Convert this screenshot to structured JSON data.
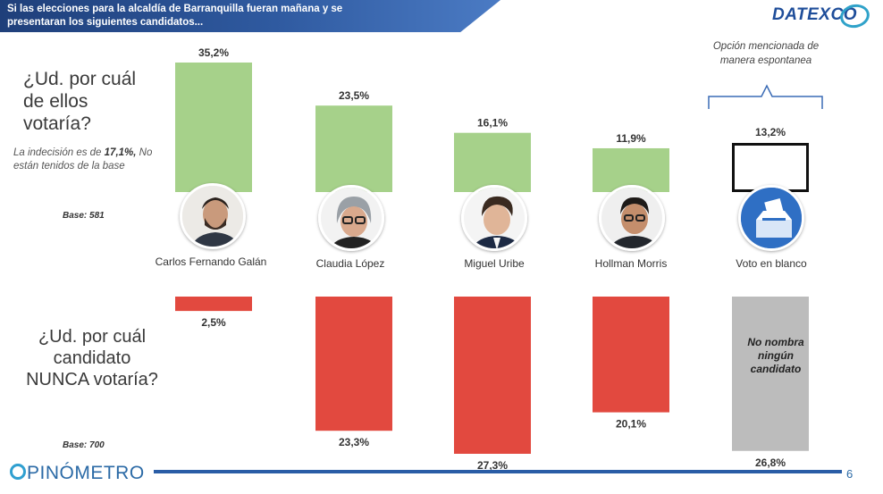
{
  "header": {
    "title": "Si las elecciones para la alcaldía de Barranquilla fueran mañana y se presentaran los siguientes candidatos...",
    "logo": "DATEXCO"
  },
  "question_vote": "¿Ud. por cuál de ellos votaría?",
  "indecision_note": {
    "prefix": "La indecisión es de ",
    "value": "17,1%,",
    "suffix": " No están tenidos de la base"
  },
  "base_vote": "Base: 581",
  "question_never": "¿Ud. por cuál candidato NUNCA votaría?",
  "base_never": "Base: 700",
  "spontaneous_label": "Opción mencionada de manera espontanea",
  "no_name_label": "No nombra ningún candidato",
  "footer": {
    "brand": "PINÓMETRO",
    "page": "6"
  },
  "colors": {
    "vote": "#a6d18a",
    "never": "#e2493f",
    "no_name": "#bcbcbc",
    "header": "#1f3f7a",
    "accent": "#2a5da6"
  },
  "chart_data": [
    {
      "type": "bar",
      "title": "¿Ud. por cuál de ellos votaría?",
      "categories": [
        "Carlos Fernando Galán",
        "Claudia López",
        "Miguel Uribe",
        "Hollman Morris",
        "Voto en blanco"
      ],
      "values": [
        35.2,
        23.5,
        16.1,
        11.9,
        13.2
      ],
      "labels": [
        "35,2%",
        "23,5%",
        "16,1%",
        "11,9%",
        "13,2%"
      ],
      "unit": "%"
    },
    {
      "type": "bar",
      "title": "¿Ud. por cuál candidato NUNCA votaría?",
      "categories": [
        "Carlos Fernando Galán",
        "Claudia López",
        "Miguel Uribe",
        "Hollman Morris",
        "No nombra ningún candidato"
      ],
      "values": [
        2.5,
        23.3,
        27.3,
        20.1,
        26.8
      ],
      "labels": [
        "2,5%",
        "23,3%",
        "27,3%",
        "20,1%",
        "26,8%"
      ],
      "unit": "%"
    }
  ]
}
